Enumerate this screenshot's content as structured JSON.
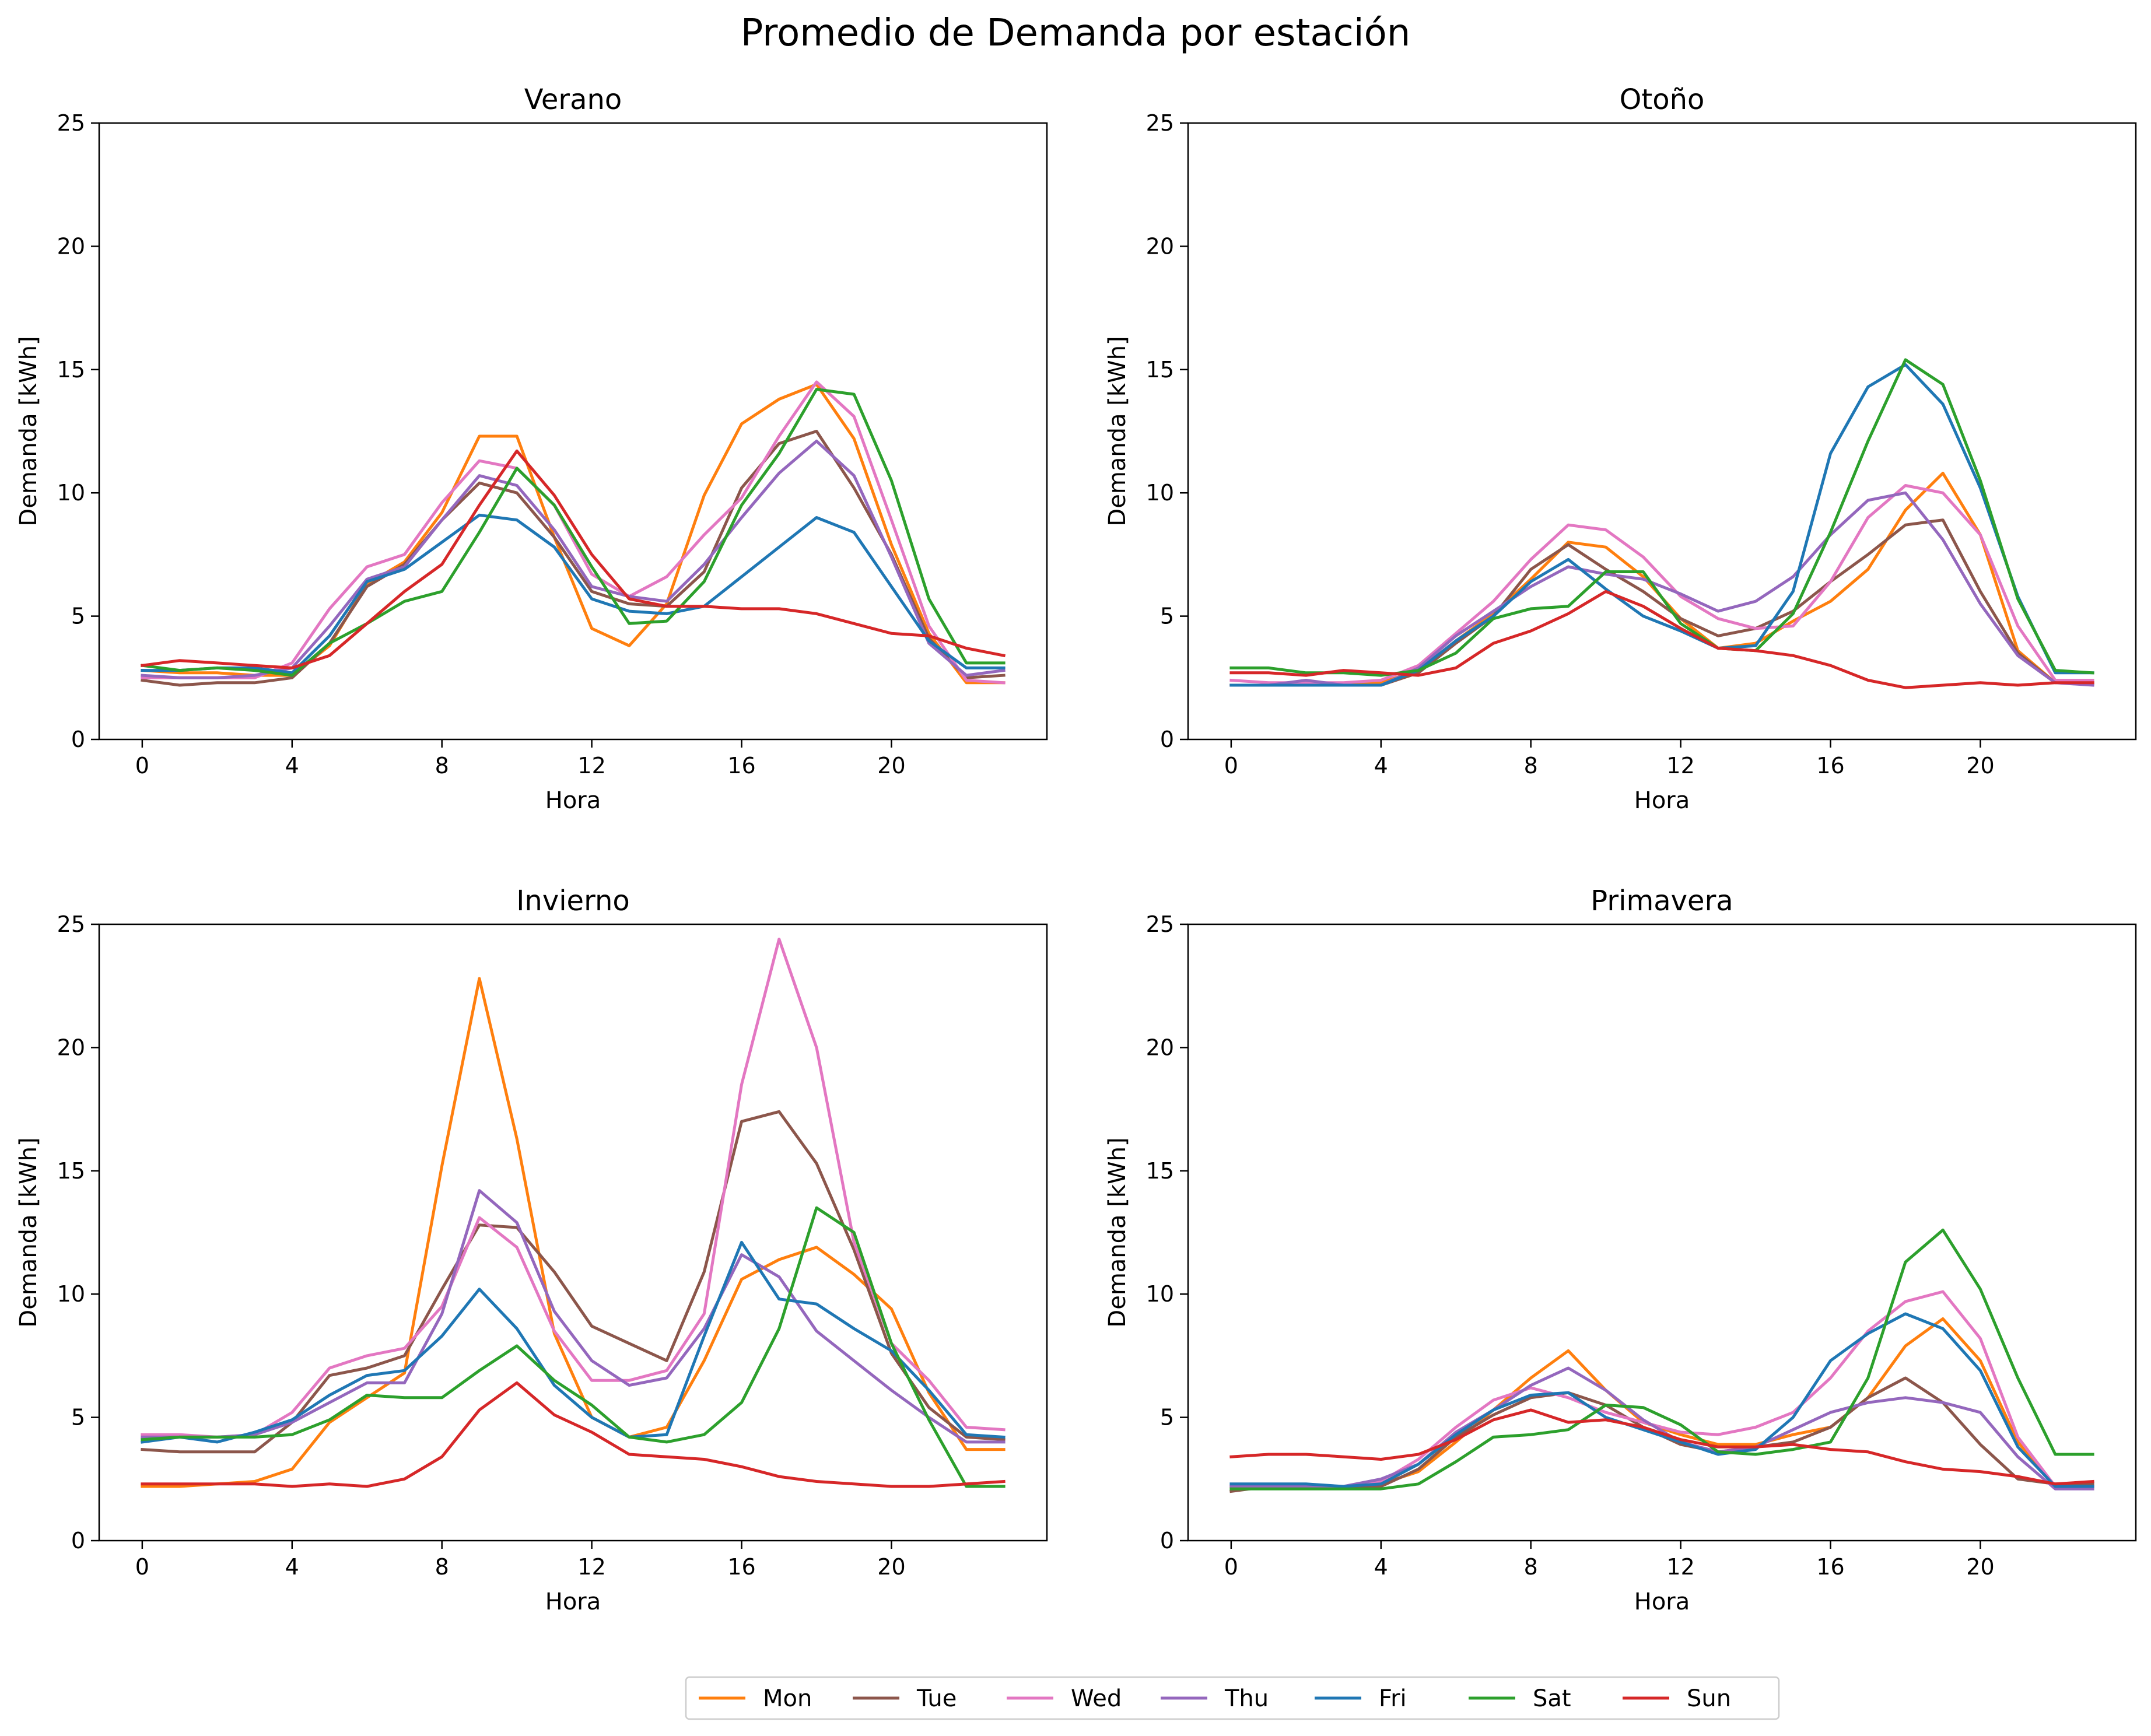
{
  "suptitle": "Promedio de Demanda por estación",
  "series_colors": {
    "Mon": "#ff7f0e",
    "Tue": "#8c564b",
    "Wed": "#e377c2",
    "Thu": "#9467bd",
    "Fri": "#1f77b4",
    "Sat": "#2ca02c",
    "Sun": "#d62728"
  },
  "legend": {
    "placement": "bottom-center",
    "entries": [
      "Mon",
      "Tue",
      "Wed",
      "Thu",
      "Fri",
      "Sat",
      "Sun"
    ]
  },
  "chart_data": [
    {
      "type": "line",
      "title": "Verano",
      "xlabel": "Hora",
      "ylabel": "Demanda [kWh]",
      "xlim": [
        -1.15,
        24.15
      ],
      "ylim": [
        0,
        25
      ],
      "xticks": [
        0,
        4,
        8,
        12,
        16,
        20
      ],
      "yticks": [
        0,
        5,
        10,
        15,
        20,
        25
      ],
      "grid": false,
      "x": [
        0,
        1,
        2,
        3,
        4,
        5,
        6,
        7,
        8,
        9,
        10,
        11,
        12,
        13,
        14,
        15,
        16,
        17,
        18,
        19,
        20,
        21,
        22,
        23
      ],
      "series": [
        {
          "name": "Mon",
          "values": [
            2.8,
            2.7,
            2.7,
            2.6,
            2.6,
            3.8,
            6.3,
            7.2,
            9.2,
            12.3,
            12.3,
            8.2,
            4.5,
            3.8,
            5.5,
            9.9,
            12.8,
            13.8,
            14.4,
            12.2,
            7.9,
            4.3,
            2.3,
            2.3
          ]
        },
        {
          "name": "Tue",
          "values": [
            2.4,
            2.2,
            2.3,
            2.3,
            2.5,
            3.9,
            6.2,
            7.1,
            8.9,
            10.4,
            10.0,
            8.2,
            6.0,
            5.5,
            5.4,
            6.8,
            10.2,
            12.0,
            12.5,
            10.2,
            7.5,
            4.1,
            2.5,
            2.6
          ]
        },
        {
          "name": "Wed",
          "values": [
            2.5,
            2.5,
            2.5,
            2.5,
            3.1,
            5.3,
            7.0,
            7.5,
            9.6,
            11.3,
            11.0,
            9.5,
            6.7,
            5.8,
            6.6,
            8.3,
            9.8,
            12.3,
            14.5,
            13.1,
            8.9,
            4.6,
            2.4,
            2.3
          ]
        },
        {
          "name": "Thu",
          "values": [
            2.6,
            2.5,
            2.5,
            2.6,
            2.9,
            4.6,
            6.5,
            7.0,
            8.9,
            10.7,
            10.3,
            8.5,
            6.2,
            5.8,
            5.6,
            7.1,
            9.0,
            10.8,
            12.1,
            10.7,
            7.4,
            3.9,
            2.6,
            2.8
          ]
        },
        {
          "name": "Fri",
          "values": [
            2.8,
            2.8,
            2.9,
            2.9,
            2.7,
            4.2,
            6.4,
            6.9,
            8.0,
            9.1,
            8.9,
            7.8,
            5.7,
            5.2,
            5.1,
            5.4,
            6.6,
            7.8,
            9.0,
            8.4,
            6.2,
            4.0,
            2.9,
            2.9
          ]
        },
        {
          "name": "Sat",
          "values": [
            3.0,
            2.8,
            2.9,
            2.8,
            2.6,
            3.9,
            4.7,
            5.6,
            6.0,
            8.4,
            11.0,
            9.5,
            7.0,
            4.7,
            4.8,
            6.4,
            9.5,
            11.6,
            14.2,
            14.0,
            10.5,
            5.7,
            3.1,
            3.1
          ]
        },
        {
          "name": "Sun",
          "values": [
            3.0,
            3.2,
            3.1,
            3.0,
            2.9,
            3.4,
            4.7,
            6.0,
            7.1,
            9.5,
            11.7,
            9.9,
            7.5,
            5.7,
            5.4,
            5.4,
            5.3,
            5.3,
            5.1,
            4.7,
            4.3,
            4.2,
            3.7,
            3.4
          ]
        }
      ]
    },
    {
      "type": "line",
      "title": "Otoño",
      "xlabel": "Hora",
      "ylabel": "Demanda [kWh]",
      "xlim": [
        -1.15,
        24.15
      ],
      "ylim": [
        0,
        25
      ],
      "xticks": [
        0,
        4,
        8,
        12,
        16,
        20
      ],
      "yticks": [
        0,
        5,
        10,
        15,
        20,
        25
      ],
      "grid": false,
      "x": [
        0,
        1,
        2,
        3,
        4,
        5,
        6,
        7,
        8,
        9,
        10,
        11,
        12,
        13,
        14,
        15,
        16,
        17,
        18,
        19,
        20,
        21,
        22,
        23
      ],
      "series": [
        {
          "name": "Mon",
          "values": [
            2.2,
            2.2,
            2.2,
            2.2,
            2.3,
            2.8,
            4.0,
            5.1,
            6.5,
            8.0,
            7.8,
            6.6,
            4.9,
            3.7,
            3.9,
            4.8,
            5.6,
            6.9,
            9.3,
            10.8,
            8.3,
            3.6,
            2.3,
            2.3
          ]
        },
        {
          "name": "Tue",
          "values": [
            2.2,
            2.2,
            2.2,
            2.2,
            2.2,
            2.7,
            3.9,
            5.0,
            6.9,
            7.9,
            6.9,
            6.0,
            4.9,
            4.2,
            4.5,
            5.2,
            6.4,
            7.5,
            8.7,
            8.9,
            6.0,
            3.5,
            2.3,
            2.3
          ]
        },
        {
          "name": "Wed",
          "values": [
            2.4,
            2.3,
            2.3,
            2.3,
            2.4,
            3.0,
            4.3,
            5.6,
            7.3,
            8.7,
            8.5,
            7.4,
            5.8,
            4.9,
            4.5,
            4.6,
            6.4,
            9.0,
            10.3,
            10.0,
            8.3,
            4.6,
            2.4,
            2.4
          ]
        },
        {
          "name": "Thu",
          "values": [
            2.2,
            2.2,
            2.4,
            2.2,
            2.2,
            2.9,
            4.2,
            5.2,
            6.2,
            7.0,
            6.7,
            6.5,
            5.9,
            5.2,
            5.6,
            6.6,
            8.3,
            9.7,
            10.0,
            8.1,
            5.5,
            3.4,
            2.3,
            2.2
          ]
        },
        {
          "name": "Fri",
          "values": [
            2.2,
            2.2,
            2.2,
            2.2,
            2.2,
            2.8,
            4.0,
            5.0,
            6.4,
            7.3,
            6.1,
            5.0,
            4.4,
            3.7,
            3.8,
            6.0,
            11.6,
            14.3,
            15.2,
            13.6,
            10.2,
            5.8,
            2.7,
            2.7
          ]
        },
        {
          "name": "Sat",
          "values": [
            2.9,
            2.9,
            2.7,
            2.7,
            2.6,
            2.8,
            3.5,
            4.9,
            5.3,
            5.4,
            6.8,
            6.8,
            4.7,
            3.7,
            3.6,
            5.1,
            8.4,
            12.1,
            15.4,
            14.4,
            10.5,
            5.7,
            2.8,
            2.7
          ]
        },
        {
          "name": "Sun",
          "values": [
            2.7,
            2.7,
            2.6,
            2.8,
            2.7,
            2.6,
            2.9,
            3.9,
            4.4,
            5.1,
            6.0,
            5.4,
            4.5,
            3.7,
            3.6,
            3.4,
            3.0,
            2.4,
            2.1,
            2.2,
            2.3,
            2.2,
            2.3,
            2.3
          ]
        }
      ]
    },
    {
      "type": "line",
      "title": "Invierno",
      "xlabel": "Hora",
      "ylabel": "Demanda [kWh]",
      "xlim": [
        -1.15,
        24.15
      ],
      "ylim": [
        0,
        25
      ],
      "xticks": [
        0,
        4,
        8,
        12,
        16,
        20
      ],
      "yticks": [
        0,
        5,
        10,
        15,
        20,
        25
      ],
      "grid": false,
      "x": [
        0,
        1,
        2,
        3,
        4,
        5,
        6,
        7,
        8,
        9,
        10,
        11,
        12,
        13,
        14,
        15,
        16,
        17,
        18,
        19,
        20,
        21,
        22,
        23
      ],
      "series": [
        {
          "name": "Mon",
          "values": [
            2.2,
            2.2,
            2.3,
            2.4,
            2.9,
            4.8,
            5.8,
            6.8,
            15.2,
            22.8,
            16.3,
            8.4,
            5.0,
            4.2,
            4.6,
            7.3,
            10.6,
            11.4,
            11.9,
            10.8,
            9.4,
            6.0,
            3.7,
            3.7
          ]
        },
        {
          "name": "Tue",
          "values": [
            3.7,
            3.6,
            3.6,
            3.6,
            4.8,
            6.7,
            7.0,
            7.5,
            10.2,
            12.8,
            12.7,
            10.9,
            8.7,
            8.0,
            7.3,
            10.9,
            17.0,
            17.4,
            15.3,
            11.8,
            7.6,
            5.4,
            4.2,
            4.1
          ]
        },
        {
          "name": "Wed",
          "values": [
            4.3,
            4.3,
            4.2,
            4.3,
            5.2,
            7.0,
            7.5,
            7.8,
            9.5,
            13.1,
            11.9,
            8.5,
            6.5,
            6.5,
            6.9,
            9.2,
            18.5,
            24.4,
            20.0,
            12.1,
            8.0,
            6.5,
            4.6,
            4.5
          ]
        },
        {
          "name": "Thu",
          "values": [
            4.2,
            4.2,
            4.2,
            4.3,
            4.8,
            5.6,
            6.4,
            6.4,
            9.2,
            14.2,
            12.9,
            9.3,
            7.3,
            6.3,
            6.6,
            8.6,
            11.6,
            10.7,
            8.5,
            7.3,
            6.1,
            5.0,
            4.0,
            4.0
          ]
        },
        {
          "name": "Fri",
          "values": [
            4.0,
            4.2,
            4.0,
            4.4,
            4.9,
            5.9,
            6.7,
            6.9,
            8.3,
            10.2,
            8.6,
            6.3,
            5.0,
            4.2,
            4.3,
            8.3,
            12.1,
            9.8,
            9.6,
            8.6,
            7.7,
            6.1,
            4.3,
            4.2
          ]
        },
        {
          "name": "Sat",
          "values": [
            4.1,
            4.2,
            4.2,
            4.2,
            4.3,
            4.9,
            5.9,
            5.8,
            5.8,
            6.9,
            7.9,
            6.5,
            5.5,
            4.2,
            4.0,
            4.3,
            5.6,
            8.6,
            13.5,
            12.5,
            8.0,
            4.9,
            2.2,
            2.2
          ]
        },
        {
          "name": "Sun",
          "values": [
            2.3,
            2.3,
            2.3,
            2.3,
            2.2,
            2.3,
            2.2,
            2.5,
            3.4,
            5.3,
            6.4,
            5.1,
            4.4,
            3.5,
            3.4,
            3.3,
            3.0,
            2.6,
            2.4,
            2.3,
            2.2,
            2.2,
            2.3,
            2.4
          ]
        }
      ]
    },
    {
      "type": "line",
      "title": "Primavera",
      "xlabel": "Hora",
      "ylabel": "Demanda [kWh]",
      "xlim": [
        -1.15,
        24.15
      ],
      "ylim": [
        0,
        25
      ],
      "xticks": [
        0,
        4,
        8,
        12,
        16,
        20
      ],
      "yticks": [
        0,
        5,
        10,
        15,
        20,
        25
      ],
      "grid": false,
      "x": [
        0,
        1,
        2,
        3,
        4,
        5,
        6,
        7,
        8,
        9,
        10,
        11,
        12,
        13,
        14,
        15,
        16,
        17,
        18,
        19,
        20,
        21,
        22,
        23
      ],
      "series": [
        {
          "name": "Mon",
          "values": [
            2.2,
            2.2,
            2.2,
            2.2,
            2.3,
            2.8,
            4.0,
            5.3,
            6.6,
            7.7,
            6.1,
            4.8,
            4.3,
            3.9,
            3.9,
            4.3,
            4.6,
            5.8,
            7.9,
            9.0,
            7.3,
            4.0,
            2.2,
            2.2
          ]
        },
        {
          "name": "Tue",
          "values": [
            2.0,
            2.2,
            2.2,
            2.2,
            2.2,
            2.9,
            4.2,
            5.1,
            5.8,
            6.0,
            5.5,
            4.6,
            3.9,
            3.6,
            3.8,
            4.0,
            4.6,
            5.8,
            6.6,
            5.6,
            3.9,
            2.5,
            2.3,
            2.3
          ]
        },
        {
          "name": "Wed",
          "values": [
            2.2,
            2.2,
            2.2,
            2.2,
            2.4,
            3.3,
            4.6,
            5.7,
            6.2,
            5.8,
            5.2,
            4.8,
            4.4,
            4.3,
            4.6,
            5.2,
            6.6,
            8.5,
            9.7,
            10.1,
            8.2,
            4.2,
            2.2,
            2.2
          ]
        },
        {
          "name": "Thu",
          "values": [
            2.2,
            2.2,
            2.2,
            2.2,
            2.5,
            3.1,
            4.4,
            5.3,
            6.3,
            7.0,
            6.1,
            4.9,
            4.0,
            3.6,
            3.8,
            4.5,
            5.2,
            5.6,
            5.8,
            5.6,
            5.2,
            3.4,
            2.1,
            2.1
          ]
        },
        {
          "name": "Fri",
          "values": [
            2.3,
            2.3,
            2.3,
            2.2,
            2.3,
            3.1,
            4.3,
            5.3,
            5.9,
            6.0,
            5.0,
            4.5,
            4.0,
            3.5,
            3.7,
            5.0,
            7.3,
            8.4,
            9.2,
            8.6,
            6.9,
            3.8,
            2.2,
            2.2
          ]
        },
        {
          "name": "Sat",
          "values": [
            2.1,
            2.1,
            2.1,
            2.1,
            2.1,
            2.3,
            3.2,
            4.2,
            4.3,
            4.5,
            5.5,
            5.4,
            4.7,
            3.6,
            3.5,
            3.7,
            4.0,
            6.6,
            11.3,
            12.6,
            10.2,
            6.6,
            3.5,
            3.5
          ]
        },
        {
          "name": "Sun",
          "values": [
            3.4,
            3.5,
            3.5,
            3.4,
            3.3,
            3.5,
            4.1,
            4.9,
            5.3,
            4.8,
            4.9,
            4.6,
            4.1,
            3.8,
            3.8,
            3.9,
            3.7,
            3.6,
            3.2,
            2.9,
            2.8,
            2.6,
            2.3,
            2.4
          ]
        }
      ]
    }
  ]
}
